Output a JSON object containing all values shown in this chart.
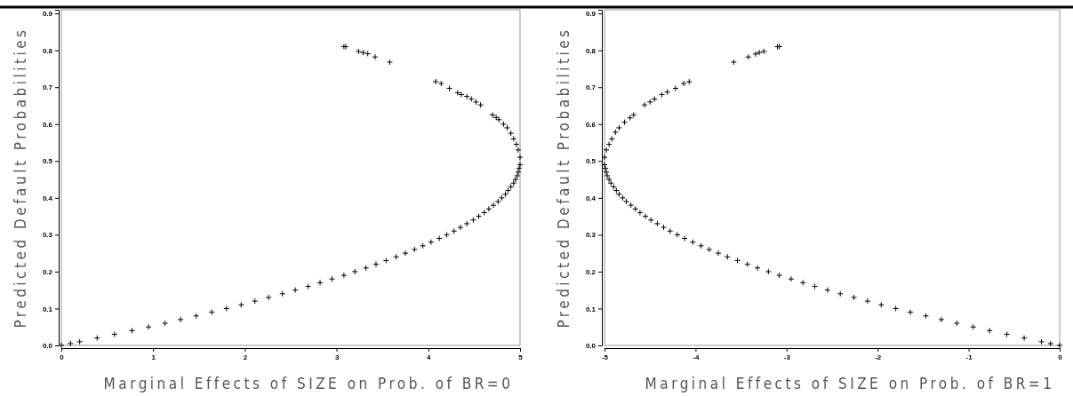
{
  "chart_data": [
    {
      "type": "scatter",
      "xlabel": "Marginal Effects of SIZE on Prob. of BR=0",
      "ylabel": "Predicted Default Probabilities",
      "marker": "cross",
      "grid": false,
      "xlim": [
        0,
        5
      ],
      "ylim": [
        0,
        0.91
      ],
      "xticks": [
        0,
        1,
        2,
        3,
        4,
        5
      ],
      "yticks": [
        {
          "value": 0,
          "label": "0.0"
        },
        0.1,
        0.2,
        0.3,
        0.4,
        0.5,
        0.6,
        0.7,
        0.8,
        0.9
      ],
      "series": [
        {
          "color": "#000000",
          "x": [
            0,
            0.1,
            0.2,
            0.39,
            0.58,
            0.77,
            0.95,
            1.13,
            1.3,
            1.47,
            1.64,
            1.8,
            1.96,
            2.11,
            2.26,
            2.41,
            2.55,
            2.69,
            2.82,
            2.95,
            3.08,
            3.2,
            3.32,
            3.43,
            3.54,
            3.65,
            3.75,
            3.85,
            3.94,
            4.03,
            4.12,
            4.2,
            4.28,
            4.35,
            4.42,
            4.49,
            4.55,
            4.61,
            4.66,
            4.71,
            4.76,
            4.8,
            4.84,
            4.87,
            4.9,
            4.93,
            4.95,
            4.97,
            4.98,
            4.99,
            5.0,
            5.0,
            4.98,
            4.96,
            4.93,
            4.9,
            4.86,
            4.82,
            4.77,
            4.74,
            4.7,
            4.57,
            4.52,
            4.47,
            4.42,
            4.36,
            4.32,
            4.23,
            4.14,
            4.08,
            3.58,
            3.42,
            3.34,
            3.29,
            3.24,
            3.1,
            3.08
          ],
          "values": [
            0,
            0.005,
            0.01,
            0.02,
            0.03,
            0.04,
            0.05,
            0.06,
            0.07,
            0.08,
            0.09,
            0.1,
            0.11,
            0.12,
            0.13,
            0.14,
            0.15,
            0.16,
            0.17,
            0.18,
            0.19,
            0.2,
            0.21,
            0.22,
            0.23,
            0.24,
            0.25,
            0.26,
            0.27,
            0.28,
            0.29,
            0.3,
            0.31,
            0.32,
            0.33,
            0.34,
            0.35,
            0.36,
            0.37,
            0.38,
            0.39,
            0.4,
            0.41,
            0.42,
            0.43,
            0.44,
            0.45,
            0.46,
            0.47,
            0.48,
            0.49,
            0.51,
            0.53,
            0.545,
            0.56,
            0.575,
            0.59,
            0.6,
            0.612,
            0.618,
            0.625,
            0.652,
            0.66,
            0.668,
            0.675,
            0.68,
            0.685,
            0.697,
            0.71,
            0.715,
            0.768,
            0.782,
            0.791,
            0.794,
            0.797,
            0.81,
            0.81
          ]
        }
      ]
    },
    {
      "type": "scatter",
      "xlabel": "Marginal Effects of SIZE on Prob. of BR=1",
      "ylabel": "Predicted Default Probabilities",
      "marker": "cross",
      "grid": false,
      "xlim": [
        -5,
        0
      ],
      "ylim": [
        0,
        0.91
      ],
      "xticks": [
        -5,
        -4,
        -3,
        -2,
        -1,
        0
      ],
      "yticks": [
        {
          "value": 0,
          "label": "0.0"
        },
        0.1,
        0.2,
        0.3,
        0.4,
        0.5,
        0.6,
        0.7,
        0.8,
        0.9
      ],
      "series": [
        {
          "color": "#000000",
          "x": [
            0,
            -0.1,
            -0.2,
            -0.39,
            -0.58,
            -0.77,
            -0.95,
            -1.13,
            -1.3,
            -1.47,
            -1.64,
            -1.8,
            -1.96,
            -2.11,
            -2.26,
            -2.41,
            -2.55,
            -2.69,
            -2.82,
            -2.95,
            -3.08,
            -3.2,
            -3.32,
            -3.43,
            -3.54,
            -3.65,
            -3.75,
            -3.85,
            -3.94,
            -4.03,
            -4.12,
            -4.2,
            -4.28,
            -4.35,
            -4.42,
            -4.49,
            -4.55,
            -4.61,
            -4.66,
            -4.71,
            -4.76,
            -4.8,
            -4.84,
            -4.87,
            -4.9,
            -4.93,
            -4.95,
            -4.97,
            -4.98,
            -4.99,
            -5.0,
            -5.0,
            -4.98,
            -4.95,
            -4.92,
            -4.88,
            -4.84,
            -4.78,
            -4.72,
            -4.68,
            -4.56,
            -4.5,
            -4.45,
            -4.37,
            -4.31,
            -4.22,
            -4.13,
            -4.07,
            -3.58,
            -3.42,
            -3.34,
            -3.3,
            -3.25,
            -3.1,
            -3.08
          ],
          "values": [
            0,
            0.005,
            0.01,
            0.02,
            0.03,
            0.04,
            0.05,
            0.06,
            0.07,
            0.08,
            0.09,
            0.1,
            0.11,
            0.12,
            0.13,
            0.14,
            0.15,
            0.16,
            0.17,
            0.18,
            0.19,
            0.2,
            0.21,
            0.22,
            0.23,
            0.24,
            0.25,
            0.26,
            0.27,
            0.28,
            0.29,
            0.3,
            0.31,
            0.32,
            0.33,
            0.34,
            0.35,
            0.36,
            0.37,
            0.38,
            0.39,
            0.4,
            0.41,
            0.42,
            0.43,
            0.44,
            0.45,
            0.46,
            0.47,
            0.48,
            0.49,
            0.51,
            0.53,
            0.545,
            0.56,
            0.578,
            0.59,
            0.605,
            0.617,
            0.625,
            0.652,
            0.66,
            0.668,
            0.68,
            0.687,
            0.697,
            0.71,
            0.715,
            0.768,
            0.782,
            0.79,
            0.794,
            0.797,
            0.81,
            0.81
          ]
        }
      ]
    }
  ]
}
